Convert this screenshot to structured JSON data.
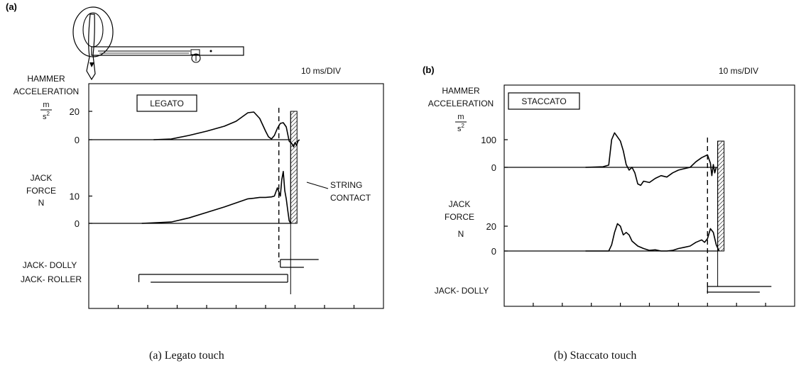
{
  "chart_data": [
    {
      "type": "line",
      "panel_label": "(a)",
      "caption": "(a)  Legato touch",
      "time_scale": "10 ms/DIV",
      "touch_label": "LEGATO",
      "x_unit_ms_per_div": 10,
      "xlim": [
        -30,
        70
      ],
      "string_contact_label": "STRING CONTACT",
      "string_contact_time": 38.5,
      "escapement_time": 34.5,
      "traces": [
        {
          "name": "hammer_acceleration",
          "label": [
            "HAMMER",
            "ACCELERATION"
          ],
          "unit_num": "m",
          "unit_den": "s2",
          "ticks": [
            0,
            20
          ],
          "ylim": [
            -5,
            25
          ],
          "points": [
            [
              -8,
              0
            ],
            [
              -2,
              0.5
            ],
            [
              4,
              3
            ],
            [
              10,
              6
            ],
            [
              16,
              9.5
            ],
            [
              20,
              13
            ],
            [
              22,
              16
            ],
            [
              24,
              19
            ],
            [
              26,
              19.5
            ],
            [
              28,
              15
            ],
            [
              30,
              6
            ],
            [
              31,
              2
            ],
            [
              32,
              0.5
            ],
            [
              33,
              3
            ],
            [
              34,
              8
            ],
            [
              35,
              11.5
            ],
            [
              36,
              12
            ],
            [
              37,
              9
            ],
            [
              38,
              -1
            ],
            [
              39,
              -3
            ],
            [
              39.5,
              -5
            ],
            [
              40,
              -2
            ],
            [
              40.5,
              -4
            ],
            [
              41,
              -1
            ],
            [
              41.5,
              0
            ]
          ]
        },
        {
          "name": "jack_force",
          "label": [
            "JACK",
            "FORCE",
            "N"
          ],
          "ticks": [
            0,
            10
          ],
          "ylim": [
            0,
            17
          ],
          "points": [
            [
              -12,
              0
            ],
            [
              -2,
              0.5
            ],
            [
              4,
              2
            ],
            [
              10,
              4
            ],
            [
              16,
              6
            ],
            [
              20,
              7.5
            ],
            [
              24,
              9
            ],
            [
              26,
              9.2
            ],
            [
              28,
              9.5
            ],
            [
              30,
              9.5
            ],
            [
              32,
              9.7
            ],
            [
              33,
              10
            ],
            [
              34,
              13
            ],
            [
              35,
              10
            ],
            [
              35.5,
              16
            ],
            [
              36,
              19
            ],
            [
              36.5,
              12
            ],
            [
              37,
              9
            ],
            [
              37.5,
              5
            ],
            [
              38,
              1
            ],
            [
              38.5,
              0
            ]
          ]
        }
      ],
      "contacts": [
        {
          "name": "JACK- DOLLY",
          "bars": [
            [
              35,
              48
            ],
            [
              35,
              43
            ]
          ]
        },
        {
          "name": "JACK- ROLLER",
          "bars": [
            [
              -13,
              37.5
            ],
            [
              -9,
              37.5
            ]
          ]
        }
      ]
    },
    {
      "type": "line",
      "panel_label": "(b)",
      "caption": "(b)  Staccato touch",
      "time_scale": "10 ms/DIV",
      "touch_label": "STACCATO",
      "x_unit_ms_per_div": 10,
      "xlim": [
        -30,
        70
      ],
      "string_contact_time": 43.5,
      "escapement_time": 40,
      "traces": [
        {
          "name": "hammer_acceleration",
          "label": [
            "HAMMER",
            "ACCELERATION"
          ],
          "unit_num": "m",
          "unit_den": "s2",
          "ticks": [
            0,
            100
          ],
          "ylim": [
            -80,
            150
          ],
          "points": [
            [
              -2,
              0
            ],
            [
              4,
              2
            ],
            [
              6,
              8
            ],
            [
              7,
              100
            ],
            [
              8,
              125
            ],
            [
              9,
              110
            ],
            [
              10,
              95
            ],
            [
              11,
              60
            ],
            [
              12,
              10
            ],
            [
              13,
              -10
            ],
            [
              14,
              0
            ],
            [
              15,
              -20
            ],
            [
              16,
              -60
            ],
            [
              17,
              -65
            ],
            [
              18,
              -50
            ],
            [
              20,
              -55
            ],
            [
              22,
              -40
            ],
            [
              24,
              -30
            ],
            [
              26,
              -35
            ],
            [
              28,
              -20
            ],
            [
              30,
              -10
            ],
            [
              32,
              -5
            ],
            [
              34,
              0
            ],
            [
              36,
              20
            ],
            [
              38,
              35
            ],
            [
              40,
              45
            ],
            [
              40.5,
              30
            ],
            [
              41,
              15
            ],
            [
              41.5,
              -30
            ],
            [
              42,
              10
            ],
            [
              42.5,
              -20
            ],
            [
              43,
              0
            ]
          ]
        },
        {
          "name": "jack_force",
          "label": [
            "JACK",
            "FORCE",
            "N"
          ],
          "ticks": [
            0,
            20
          ],
          "ylim": [
            0,
            35
          ],
          "points": [
            [
              -2,
              0
            ],
            [
              6,
              0
            ],
            [
              7,
              5
            ],
            [
              8,
              15
            ],
            [
              9,
              22
            ],
            [
              10,
              20
            ],
            [
              11,
              13
            ],
            [
              12,
              15
            ],
            [
              13,
              13
            ],
            [
              14,
              8
            ],
            [
              16,
              4
            ],
            [
              18,
              2
            ],
            [
              20,
              0.5
            ],
            [
              22,
              1
            ],
            [
              24,
              0
            ],
            [
              26,
              0
            ],
            [
              28,
              0.5
            ],
            [
              30,
              2
            ],
            [
              32,
              3
            ],
            [
              34,
              4
            ],
            [
              36,
              7
            ],
            [
              38,
              9
            ],
            [
              39,
              7
            ],
            [
              40,
              10
            ],
            [
              41,
              18
            ],
            [
              42,
              15
            ],
            [
              43,
              5
            ],
            [
              44,
              0
            ]
          ]
        }
      ],
      "contacts": [
        {
          "name": "JACK- DOLLY",
          "bars": [
            [
              40,
              62
            ],
            [
              40,
              58
            ]
          ]
        }
      ]
    }
  ]
}
